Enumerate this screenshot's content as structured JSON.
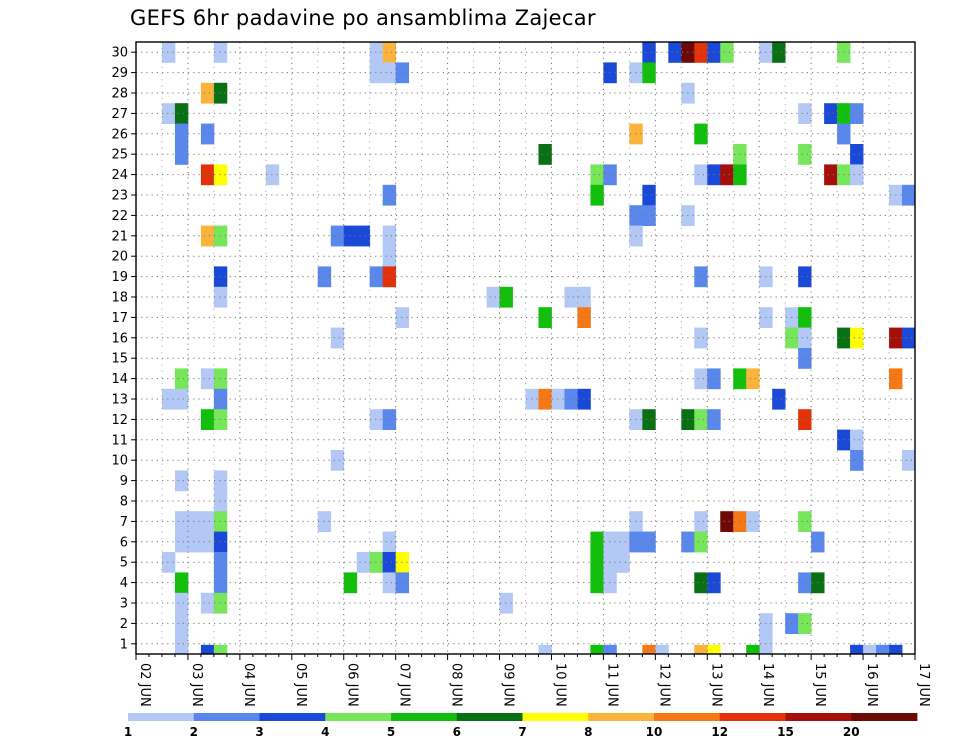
{
  "chart_data": {
    "type": "heatmap",
    "title": "GEFS 6hr padavine po ansamblima Zajecar",
    "x_tick_labels": [
      "02 JUN",
      "03 JUN",
      "04 JUN",
      "05 JUN",
      "06 JUN",
      "07 JUN",
      "08 JUN",
      "09 JUN",
      "10 JUN",
      "11 JUN",
      "12 JUN",
      "13 JUN",
      "14 JUN",
      "15 JUN",
      "16 JUN",
      "17 JUN"
    ],
    "y_tick_labels": [
      "1",
      "2",
      "3",
      "4",
      "5",
      "6",
      "7",
      "8",
      "9",
      "10",
      "11",
      "12",
      "13",
      "14",
      "15",
      "16",
      "17",
      "18",
      "19",
      "20",
      "21",
      "22",
      "23",
      "24",
      "25",
      "26",
      "27",
      "28",
      "29",
      "30"
    ],
    "xlim_steps": [
      0,
      60
    ],
    "ylim_members": [
      0,
      30
    ],
    "grid": "dotted",
    "colorbar": {
      "labels": [
        "1",
        "2",
        "3",
        "4",
        "5",
        "6",
        "7",
        "8",
        "10",
        "12",
        "15",
        "20"
      ],
      "colors": [
        "#b4c8f6",
        "#5a87ec",
        "#1a49d8",
        "#78e65a",
        "#12c00c",
        "#0a7014",
        "#ffff00",
        "#fab43c",
        "#f57814",
        "#e1320a",
        "#a50f0a",
        "#6e0a06"
      ]
    },
    "cells": [
      {
        "step": 3,
        "member": 30,
        "level": 0
      },
      {
        "step": 7,
        "member": 30,
        "level": 0
      },
      {
        "step": 19,
        "member": 30,
        "level": 0
      },
      {
        "step": 20,
        "member": 30,
        "level": 7
      },
      {
        "step": 40,
        "member": 30,
        "level": 2
      },
      {
        "step": 42,
        "member": 30,
        "level": 2
      },
      {
        "step": 43,
        "member": 30,
        "level": 11
      },
      {
        "step": 44,
        "member": 30,
        "level": 9
      },
      {
        "step": 45,
        "member": 30,
        "level": 2
      },
      {
        "step": 46,
        "member": 30,
        "level": 3
      },
      {
        "step": 49,
        "member": 30,
        "level": 0
      },
      {
        "step": 50,
        "member": 30,
        "level": 5
      },
      {
        "step": 55,
        "member": 30,
        "level": 3
      },
      {
        "step": 19,
        "member": 29,
        "level": 0
      },
      {
        "step": 20,
        "member": 29,
        "level": 0
      },
      {
        "step": 21,
        "member": 29,
        "level": 1
      },
      {
        "step": 37,
        "member": 29,
        "level": 2
      },
      {
        "step": 39,
        "member": 29,
        "level": 0
      },
      {
        "step": 40,
        "member": 29,
        "level": 4
      },
      {
        "step": 6,
        "member": 28,
        "level": 7
      },
      {
        "step": 7,
        "member": 28,
        "level": 5
      },
      {
        "step": 43,
        "member": 28,
        "level": 0
      },
      {
        "step": 3,
        "member": 27,
        "level": 0
      },
      {
        "step": 4,
        "member": 27,
        "level": 5
      },
      {
        "step": 52,
        "member": 27,
        "level": 0
      },
      {
        "step": 54,
        "member": 27,
        "level": 2
      },
      {
        "step": 55,
        "member": 27,
        "level": 4
      },
      {
        "step": 56,
        "member": 27,
        "level": 1
      },
      {
        "step": 4,
        "member": 26,
        "level": 1
      },
      {
        "step": 6,
        "member": 26,
        "level": 1
      },
      {
        "step": 39,
        "member": 26,
        "level": 7
      },
      {
        "step": 44,
        "member": 26,
        "level": 4
      },
      {
        "step": 55,
        "member": 26,
        "level": 1
      },
      {
        "step": 4,
        "member": 25,
        "level": 1
      },
      {
        "step": 32,
        "member": 25,
        "level": 5
      },
      {
        "step": 47,
        "member": 25,
        "level": 3
      },
      {
        "step": 52,
        "member": 25,
        "level": 3
      },
      {
        "step": 56,
        "member": 25,
        "level": 2
      },
      {
        "step": 6,
        "member": 24,
        "level": 9
      },
      {
        "step": 7,
        "member": 24,
        "level": 6
      },
      {
        "step": 11,
        "member": 24,
        "level": 0
      },
      {
        "step": 36,
        "member": 24,
        "level": 3
      },
      {
        "step": 37,
        "member": 24,
        "level": 1
      },
      {
        "step": 44,
        "member": 24,
        "level": 0
      },
      {
        "step": 45,
        "member": 24,
        "level": 2
      },
      {
        "step": 46,
        "member": 24,
        "level": 10
      },
      {
        "step": 47,
        "member": 24,
        "level": 4
      },
      {
        "step": 54,
        "member": 24,
        "level": 10
      },
      {
        "step": 55,
        "member": 24,
        "level": 3
      },
      {
        "step": 56,
        "member": 24,
        "level": 0
      },
      {
        "step": 20,
        "member": 23,
        "level": 1
      },
      {
        "step": 36,
        "member": 23,
        "level": 4
      },
      {
        "step": 40,
        "member": 23,
        "level": 2
      },
      {
        "step": 59,
        "member": 23,
        "level": 0
      },
      {
        "step": 60,
        "member": 23,
        "level": 1
      },
      {
        "step": 39,
        "member": 22,
        "level": 1
      },
      {
        "step": 40,
        "member": 22,
        "level": 1
      },
      {
        "step": 43,
        "member": 22,
        "level": 0
      },
      {
        "step": 6,
        "member": 21,
        "level": 7
      },
      {
        "step": 7,
        "member": 21,
        "level": 3
      },
      {
        "step": 16,
        "member": 21,
        "level": 1
      },
      {
        "step": 17,
        "member": 21,
        "level": 2
      },
      {
        "step": 18,
        "member": 21,
        "level": 2
      },
      {
        "step": 20,
        "member": 21,
        "level": 0
      },
      {
        "step": 39,
        "member": 21,
        "level": 0
      },
      {
        "step": 20,
        "member": 20,
        "level": 0
      },
      {
        "step": 7,
        "member": 19,
        "level": 2
      },
      {
        "step": 15,
        "member": 19,
        "level": 1
      },
      {
        "step": 19,
        "member": 19,
        "level": 1
      },
      {
        "step": 20,
        "member": 19,
        "level": 9
      },
      {
        "step": 44,
        "member": 19,
        "level": 1
      },
      {
        "step": 49,
        "member": 19,
        "level": 0
      },
      {
        "step": 52,
        "member": 19,
        "level": 2
      },
      {
        "step": 7,
        "member": 18,
        "level": 0
      },
      {
        "step": 28,
        "member": 18,
        "level": 0
      },
      {
        "step": 29,
        "member": 18,
        "level": 4
      },
      {
        "step": 34,
        "member": 18,
        "level": 0
      },
      {
        "step": 35,
        "member": 18,
        "level": 0
      },
      {
        "step": 21,
        "member": 17,
        "level": 0
      },
      {
        "step": 32,
        "member": 17,
        "level": 4
      },
      {
        "step": 35,
        "member": 17,
        "level": 8
      },
      {
        "step": 49,
        "member": 17,
        "level": 0
      },
      {
        "step": 51,
        "member": 17,
        "level": 0
      },
      {
        "step": 52,
        "member": 17,
        "level": 4
      },
      {
        "step": 16,
        "member": 16,
        "level": 0
      },
      {
        "step": 44,
        "member": 16,
        "level": 0
      },
      {
        "step": 51,
        "member": 16,
        "level": 3
      },
      {
        "step": 52,
        "member": 16,
        "level": 0
      },
      {
        "step": 55,
        "member": 16,
        "level": 5
      },
      {
        "step": 56,
        "member": 16,
        "level": 6
      },
      {
        "step": 59,
        "member": 16,
        "level": 10
      },
      {
        "step": 60,
        "member": 16,
        "level": 2
      },
      {
        "step": 52,
        "member": 15,
        "level": 1
      },
      {
        "step": 4,
        "member": 14,
        "level": 3
      },
      {
        "step": 6,
        "member": 14,
        "level": 0
      },
      {
        "step": 7,
        "member": 14,
        "level": 3
      },
      {
        "step": 44,
        "member": 14,
        "level": 0
      },
      {
        "step": 45,
        "member": 14,
        "level": 1
      },
      {
        "step": 47,
        "member": 14,
        "level": 4
      },
      {
        "step": 48,
        "member": 14,
        "level": 7
      },
      {
        "step": 59,
        "member": 14,
        "level": 8
      },
      {
        "step": 3,
        "member": 13,
        "level": 0
      },
      {
        "step": 4,
        "member": 13,
        "level": 0
      },
      {
        "step": 7,
        "member": 13,
        "level": 1
      },
      {
        "step": 31,
        "member": 13,
        "level": 0
      },
      {
        "step": 32,
        "member": 13,
        "level": 8
      },
      {
        "step": 33,
        "member": 13,
        "level": 0
      },
      {
        "step": 34,
        "member": 13,
        "level": 1
      },
      {
        "step": 35,
        "member": 13,
        "level": 2
      },
      {
        "step": 50,
        "member": 13,
        "level": 2
      },
      {
        "step": 6,
        "member": 12,
        "level": 4
      },
      {
        "step": 7,
        "member": 12,
        "level": 3
      },
      {
        "step": 19,
        "member": 12,
        "level": 0
      },
      {
        "step": 20,
        "member": 12,
        "level": 1
      },
      {
        "step": 39,
        "member": 12,
        "level": 0
      },
      {
        "step": 40,
        "member": 12,
        "level": 5
      },
      {
        "step": 43,
        "member": 12,
        "level": 5
      },
      {
        "step": 44,
        "member": 12,
        "level": 3
      },
      {
        "step": 45,
        "member": 12,
        "level": 1
      },
      {
        "step": 52,
        "member": 12,
        "level": 9
      },
      {
        "step": 55,
        "member": 11,
        "level": 2
      },
      {
        "step": 56,
        "member": 11,
        "level": 0
      },
      {
        "step": 16,
        "member": 10,
        "level": 0
      },
      {
        "step": 56,
        "member": 10,
        "level": 1
      },
      {
        "step": 60,
        "member": 10,
        "level": 0
      },
      {
        "step": 4,
        "member": 9,
        "level": 0
      },
      {
        "step": 7,
        "member": 9,
        "level": 0
      },
      {
        "step": 7,
        "member": 8,
        "level": 0
      },
      {
        "step": 4,
        "member": 7,
        "level": 0
      },
      {
        "step": 5,
        "member": 7,
        "level": 0
      },
      {
        "step": 6,
        "member": 7,
        "level": 0
      },
      {
        "step": 7,
        "member": 7,
        "level": 3
      },
      {
        "step": 15,
        "member": 7,
        "level": 0
      },
      {
        "step": 39,
        "member": 7,
        "level": 0
      },
      {
        "step": 44,
        "member": 7,
        "level": 0
      },
      {
        "step": 46,
        "member": 7,
        "level": 11
      },
      {
        "step": 47,
        "member": 7,
        "level": 8
      },
      {
        "step": 48,
        "member": 7,
        "level": 0
      },
      {
        "step": 52,
        "member": 7,
        "level": 3
      },
      {
        "step": 4,
        "member": 6,
        "level": 0
      },
      {
        "step": 5,
        "member": 6,
        "level": 0
      },
      {
        "step": 6,
        "member": 6,
        "level": 0
      },
      {
        "step": 7,
        "member": 6,
        "level": 2
      },
      {
        "step": 20,
        "member": 6,
        "level": 0
      },
      {
        "step": 36,
        "member": 6,
        "level": 4
      },
      {
        "step": 37,
        "member": 6,
        "level": 0
      },
      {
        "step": 38,
        "member": 6,
        "level": 0
      },
      {
        "step": 39,
        "member": 6,
        "level": 1
      },
      {
        "step": 40,
        "member": 6,
        "level": 1
      },
      {
        "step": 43,
        "member": 6,
        "level": 1
      },
      {
        "step": 44,
        "member": 6,
        "level": 3
      },
      {
        "step": 53,
        "member": 6,
        "level": 1
      },
      {
        "step": 3,
        "member": 5,
        "level": 0
      },
      {
        "step": 7,
        "member": 5,
        "level": 1
      },
      {
        "step": 18,
        "member": 5,
        "level": 0
      },
      {
        "step": 19,
        "member": 5,
        "level": 3
      },
      {
        "step": 20,
        "member": 5,
        "level": 2
      },
      {
        "step": 21,
        "member": 5,
        "level": 6
      },
      {
        "step": 36,
        "member": 5,
        "level": 4
      },
      {
        "step": 37,
        "member": 5,
        "level": 0
      },
      {
        "step": 38,
        "member": 5,
        "level": 0
      },
      {
        "step": 4,
        "member": 4,
        "level": 4
      },
      {
        "step": 7,
        "member": 4,
        "level": 1
      },
      {
        "step": 17,
        "member": 4,
        "level": 4
      },
      {
        "step": 20,
        "member": 4,
        "level": 0
      },
      {
        "step": 21,
        "member": 4,
        "level": 1
      },
      {
        "step": 36,
        "member": 4,
        "level": 4
      },
      {
        "step": 37,
        "member": 4,
        "level": 0
      },
      {
        "step": 44,
        "member": 4,
        "level": 5
      },
      {
        "step": 45,
        "member": 4,
        "level": 2
      },
      {
        "step": 52,
        "member": 4,
        "level": 1
      },
      {
        "step": 53,
        "member": 4,
        "level": 5
      },
      {
        "step": 4,
        "member": 3,
        "level": 0
      },
      {
        "step": 6,
        "member": 3,
        "level": 0
      },
      {
        "step": 7,
        "member": 3,
        "level": 3
      },
      {
        "step": 29,
        "member": 3,
        "level": 0
      },
      {
        "step": 4,
        "member": 2,
        "level": 0
      },
      {
        "step": 49,
        "member": 2,
        "level": 0
      },
      {
        "step": 51,
        "member": 2,
        "level": 1
      },
      {
        "step": 52,
        "member": 2,
        "level": 3
      },
      {
        "step": 4,
        "member": 1,
        "level": 0
      },
      {
        "step": 49,
        "member": 1,
        "level": 0
      }
    ],
    "bottom_row_cells": [
      {
        "step": 6,
        "level": 2
      },
      {
        "step": 7,
        "level": 3
      },
      {
        "step": 32,
        "level": 0
      },
      {
        "step": 36,
        "level": 4
      },
      {
        "step": 37,
        "level": 1
      },
      {
        "step": 40,
        "level": 8
      },
      {
        "step": 41,
        "level": 0
      },
      {
        "step": 44,
        "level": 7
      },
      {
        "step": 45,
        "level": 6
      },
      {
        "step": 48,
        "level": 4
      },
      {
        "step": 56,
        "level": 2
      },
      {
        "step": 57,
        "level": 0
      },
      {
        "step": 58,
        "level": 1
      },
      {
        "step": 59,
        "level": 2
      }
    ]
  }
}
